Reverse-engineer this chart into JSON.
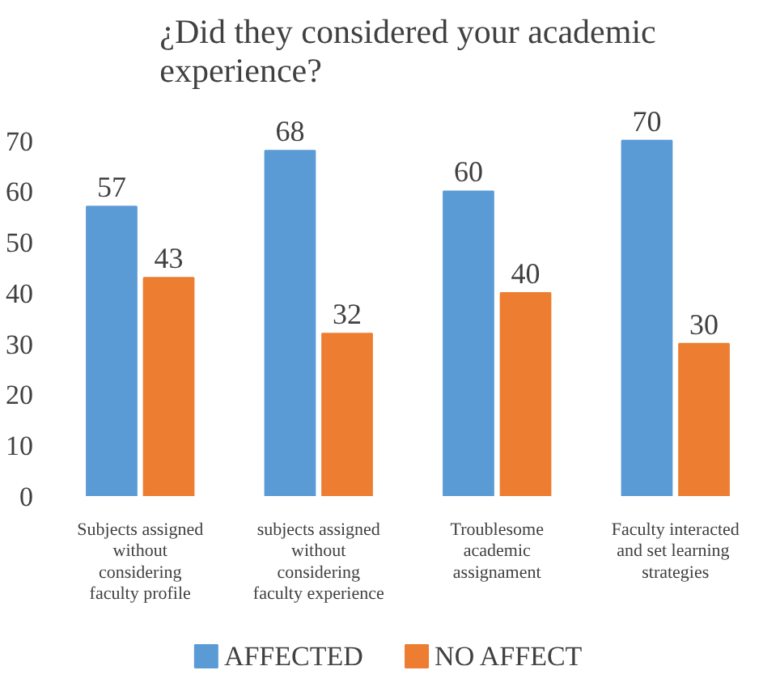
{
  "chart_data": {
    "type": "bar",
    "title": "¿Did they considered your academic\nexperience?",
    "categories": [
      "Subjects assigned\nwithout\nconsidering\nfaculty profile",
      "subjects assigned\nwithout\nconsidering\nfaculty experience",
      "Troublesome\nacademic\nassignament",
      "Faculty interacted\nand  set learning\nstrategies"
    ],
    "series": [
      {
        "name": "AFFECTED",
        "color": "#5b9bd5",
        "values": [
          57,
          68,
          60,
          70
        ]
      },
      {
        "name": "NO AFFECT",
        "color": "#ed7d31",
        "values": [
          43,
          32,
          40,
          30
        ]
      }
    ],
    "ylim": [
      0,
      70
    ],
    "yticks": [
      0,
      10,
      20,
      30,
      40,
      50,
      60,
      70
    ],
    "data_labels": true,
    "grid": false,
    "legend": "bottom"
  }
}
